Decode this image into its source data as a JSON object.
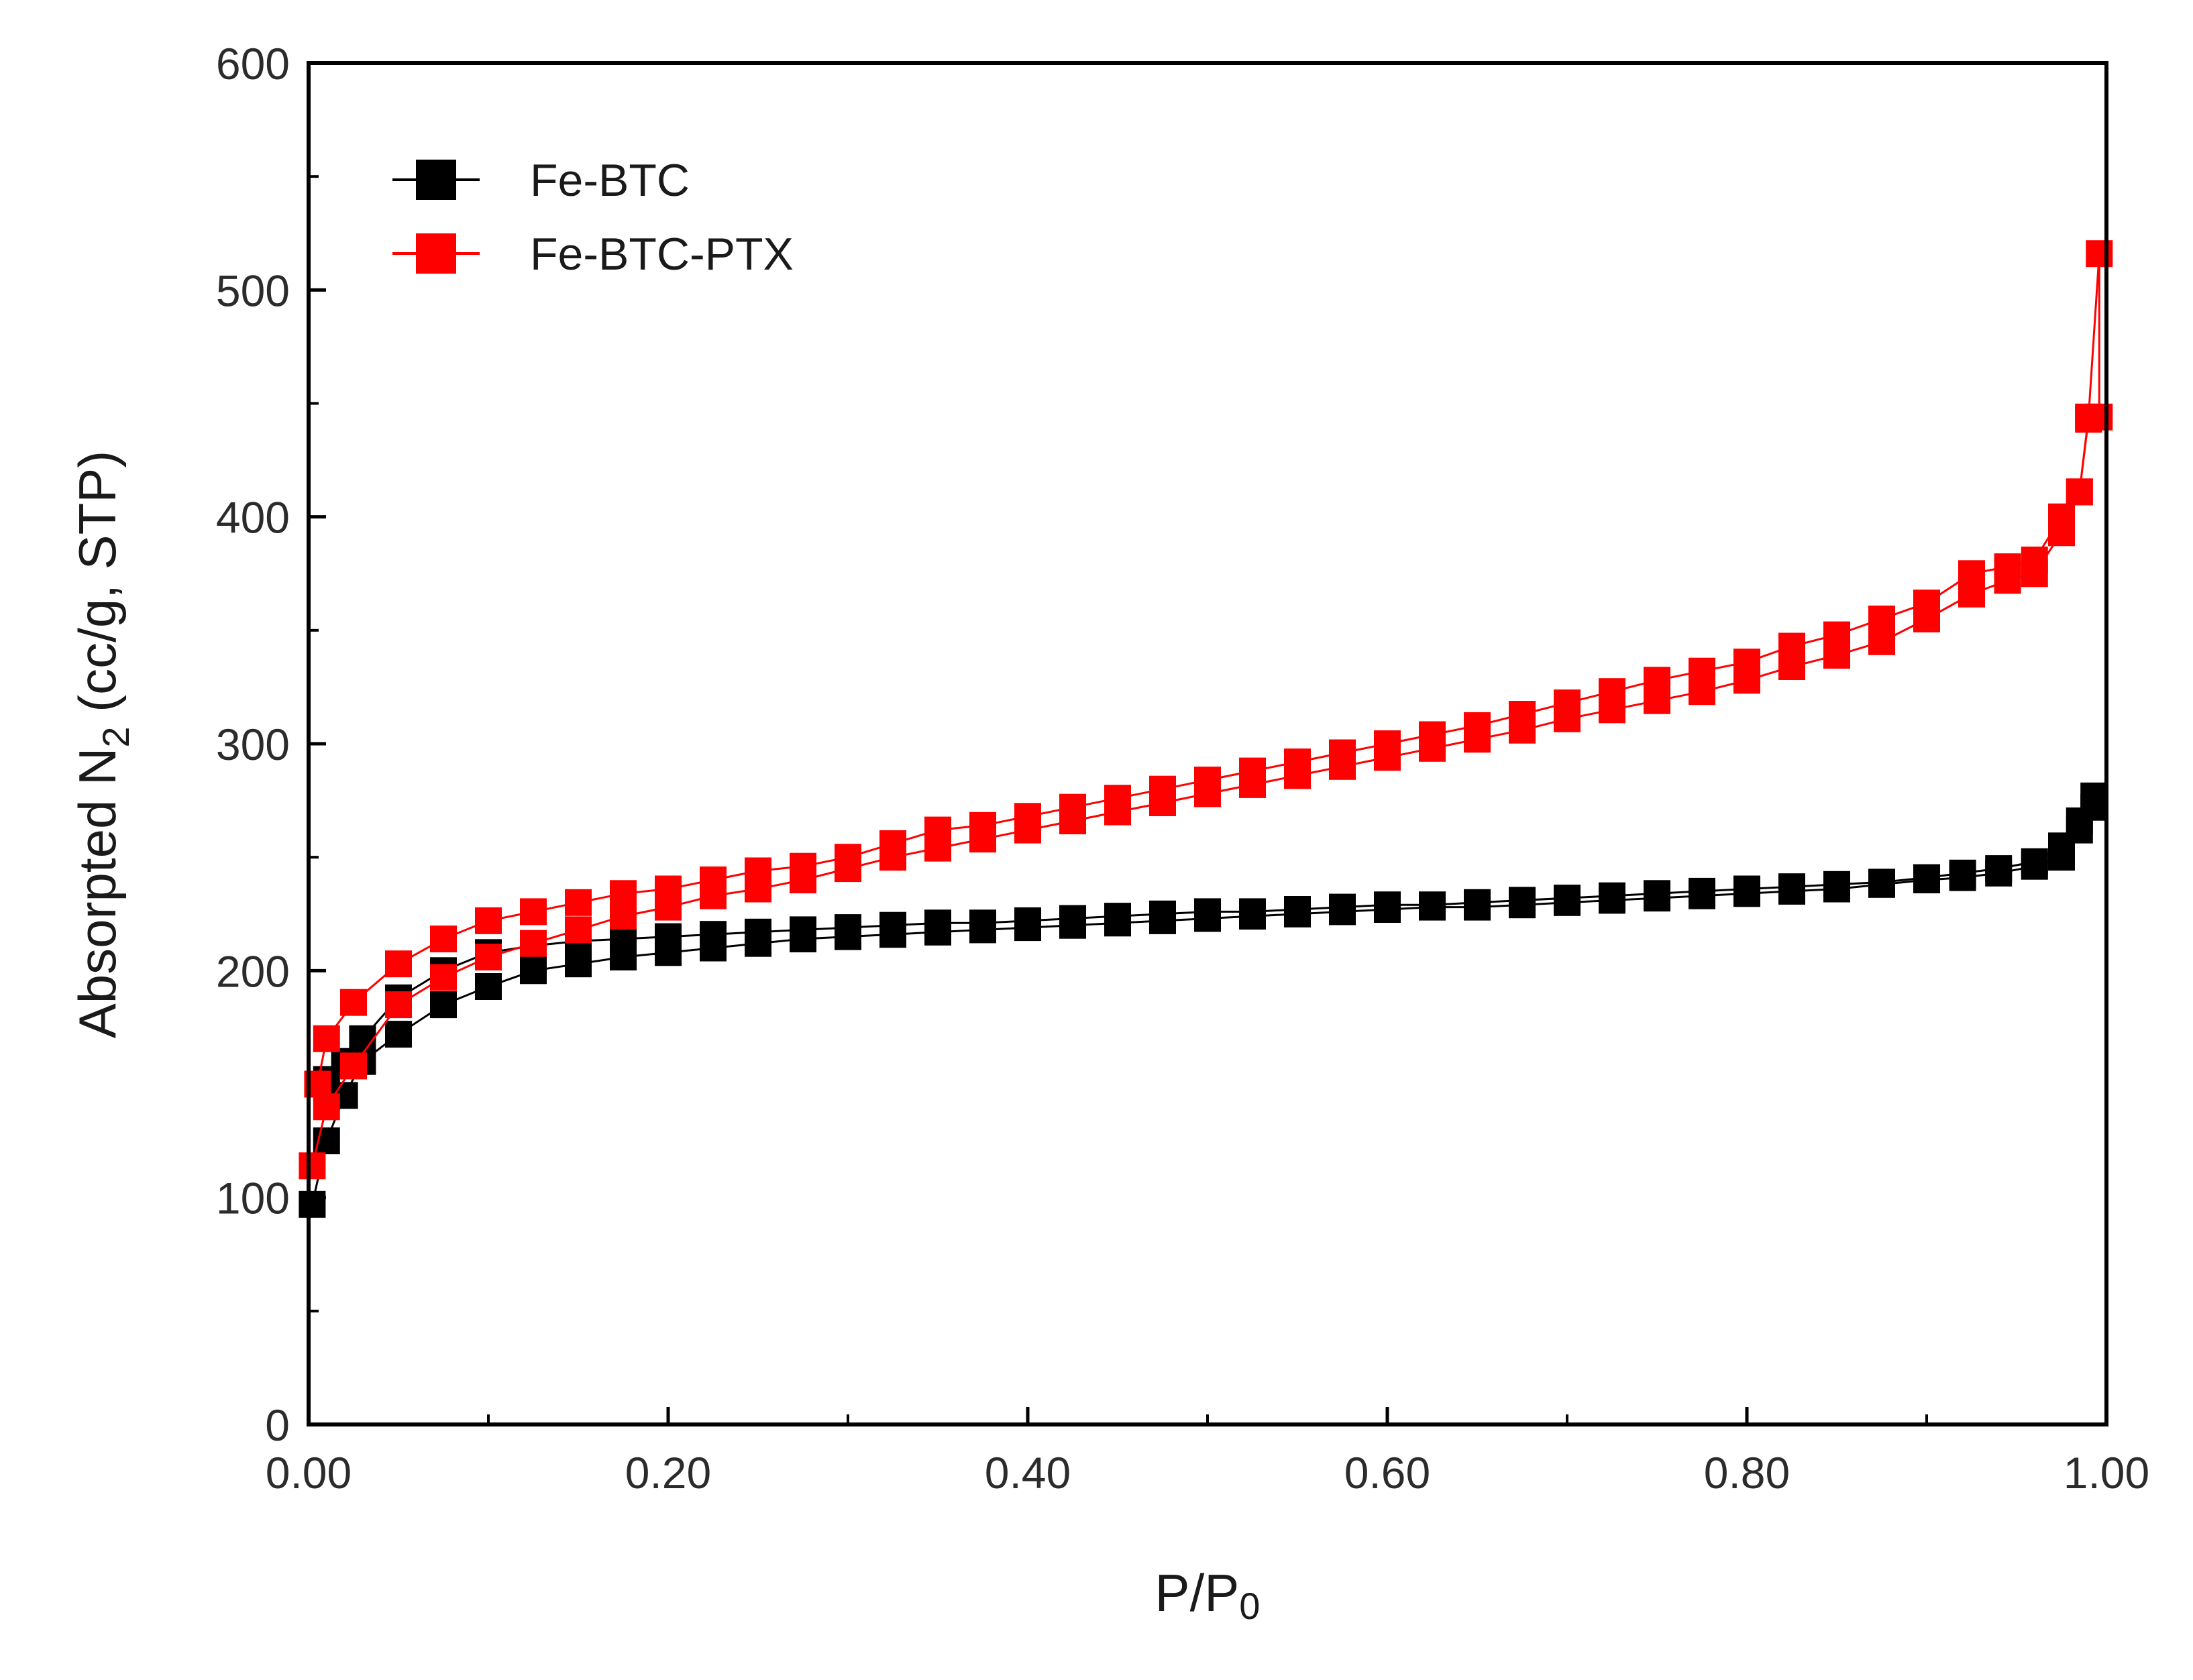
{
  "chart_data": {
    "type": "scatter",
    "title": "",
    "xlabel": "P/P",
    "xlabel_sub": "0",
    "ylabel": "Absorpted N",
    "ylabel_sub": "2",
    "ylabel_suffix": " (cc/g, STP)",
    "xlim": [
      0,
      1
    ],
    "ylim": [
      0,
      600
    ],
    "x_ticks": [
      0,
      0.2,
      0.4,
      0.6,
      0.8,
      1.0
    ],
    "x_tick_labels": [
      "0.00",
      "0.20",
      "0.40",
      "0.60",
      "0.80",
      "1.00"
    ],
    "y_ticks": [
      0,
      100,
      200,
      300,
      400,
      500,
      600
    ],
    "y_tick_labels": [
      "0",
      "100",
      "200",
      "300",
      "400",
      "500",
      "600"
    ],
    "grid": false,
    "legend_position": "top-left",
    "series": [
      {
        "name": "Fe-BTC",
        "color": "#000000",
        "adsorption": [
          [
            0.002,
            97
          ],
          [
            0.01,
            125
          ],
          [
            0.02,
            145
          ],
          [
            0.03,
            160
          ],
          [
            0.05,
            172
          ],
          [
            0.075,
            185
          ],
          [
            0.1,
            193
          ],
          [
            0.125,
            200
          ],
          [
            0.15,
            203
          ],
          [
            0.175,
            206
          ],
          [
            0.2,
            208
          ],
          [
            0.225,
            210
          ],
          [
            0.25,
            212
          ],
          [
            0.275,
            214
          ],
          [
            0.3,
            215
          ],
          [
            0.325,
            216
          ],
          [
            0.35,
            217
          ],
          [
            0.375,
            218
          ],
          [
            0.4,
            219
          ],
          [
            0.425,
            220
          ],
          [
            0.45,
            221
          ],
          [
            0.475,
            222
          ],
          [
            0.5,
            223
          ],
          [
            0.525,
            224
          ],
          [
            0.55,
            225
          ],
          [
            0.575,
            226
          ],
          [
            0.6,
            227
          ],
          [
            0.625,
            228
          ],
          [
            0.65,
            228
          ],
          [
            0.675,
            229
          ],
          [
            0.7,
            230
          ],
          [
            0.725,
            231
          ],
          [
            0.75,
            232
          ],
          [
            0.775,
            233
          ],
          [
            0.8,
            234
          ],
          [
            0.825,
            235
          ],
          [
            0.85,
            236
          ],
          [
            0.875,
            238
          ],
          [
            0.9,
            240
          ],
          [
            0.92,
            241
          ],
          [
            0.94,
            243
          ],
          [
            0.96,
            246
          ],
          [
            0.975,
            250
          ],
          [
            0.985,
            262
          ],
          [
            0.993,
            277
          ]
        ],
        "desorption": [
          [
            0.993,
            272
          ],
          [
            0.985,
            266
          ],
          [
            0.975,
            255
          ],
          [
            0.96,
            248
          ],
          [
            0.94,
            245
          ],
          [
            0.92,
            243
          ],
          [
            0.9,
            241
          ],
          [
            0.875,
            239
          ],
          [
            0.85,
            238
          ],
          [
            0.825,
            237
          ],
          [
            0.8,
            236
          ],
          [
            0.775,
            235
          ],
          [
            0.75,
            234
          ],
          [
            0.725,
            233
          ],
          [
            0.7,
            232
          ],
          [
            0.675,
            231
          ],
          [
            0.65,
            230
          ],
          [
            0.625,
            229
          ],
          [
            0.6,
            229
          ],
          [
            0.575,
            228
          ],
          [
            0.55,
            227
          ],
          [
            0.525,
            226
          ],
          [
            0.5,
            226
          ],
          [
            0.475,
            225
          ],
          [
            0.45,
            224
          ],
          [
            0.425,
            223
          ],
          [
            0.4,
            222
          ],
          [
            0.375,
            221
          ],
          [
            0.35,
            221
          ],
          [
            0.325,
            220
          ],
          [
            0.3,
            219
          ],
          [
            0.275,
            218
          ],
          [
            0.25,
            217
          ],
          [
            0.225,
            216
          ],
          [
            0.2,
            215
          ],
          [
            0.175,
            214
          ],
          [
            0.15,
            213
          ],
          [
            0.125,
            211
          ],
          [
            0.1,
            208
          ],
          [
            0.075,
            200
          ],
          [
            0.05,
            188
          ],
          [
            0.03,
            170
          ],
          [
            0.02,
            160
          ],
          [
            0.01,
            152
          ]
        ]
      },
      {
        "name": "Fe-BTC-PTX",
        "color": "#ff0000",
        "adsorption": [
          [
            0.002,
            114
          ],
          [
            0.01,
            140
          ],
          [
            0.025,
            158
          ],
          [
            0.05,
            185
          ],
          [
            0.075,
            197
          ],
          [
            0.1,
            206
          ],
          [
            0.125,
            212
          ],
          [
            0.15,
            218
          ],
          [
            0.175,
            224
          ],
          [
            0.2,
            228
          ],
          [
            0.225,
            233
          ],
          [
            0.25,
            236
          ],
          [
            0.275,
            240
          ],
          [
            0.3,
            245
          ],
          [
            0.325,
            250
          ],
          [
            0.35,
            254
          ],
          [
            0.375,
            258
          ],
          [
            0.4,
            262
          ],
          [
            0.425,
            266
          ],
          [
            0.45,
            270
          ],
          [
            0.475,
            274
          ],
          [
            0.5,
            278
          ],
          [
            0.525,
            282
          ],
          [
            0.55,
            286
          ],
          [
            0.575,
            290
          ],
          [
            0.6,
            294
          ],
          [
            0.625,
            298
          ],
          [
            0.65,
            302
          ],
          [
            0.675,
            306
          ],
          [
            0.7,
            311
          ],
          [
            0.725,
            315
          ],
          [
            0.75,
            319
          ],
          [
            0.775,
            323
          ],
          [
            0.8,
            328
          ],
          [
            0.825,
            334
          ],
          [
            0.85,
            339
          ],
          [
            0.875,
            345
          ],
          [
            0.9,
            355
          ],
          [
            0.925,
            366
          ],
          [
            0.945,
            372
          ],
          [
            0.96,
            375
          ],
          [
            0.975,
            393
          ],
          [
            0.985,
            411
          ],
          [
            0.99,
            444
          ],
          [
            0.996,
            516
          ]
        ],
        "desorption": [
          [
            0.996,
            444
          ],
          [
            0.99,
            443
          ],
          [
            0.985,
            411
          ],
          [
            0.975,
            400
          ],
          [
            0.96,
            381
          ],
          [
            0.945,
            378
          ],
          [
            0.925,
            375
          ],
          [
            0.9,
            362
          ],
          [
            0.875,
            355
          ],
          [
            0.85,
            348
          ],
          [
            0.825,
            343
          ],
          [
            0.8,
            336
          ],
          [
            0.775,
            332
          ],
          [
            0.75,
            328
          ],
          [
            0.725,
            323
          ],
          [
            0.7,
            318
          ],
          [
            0.675,
            313
          ],
          [
            0.65,
            308
          ],
          [
            0.625,
            304
          ],
          [
            0.6,
            300
          ],
          [
            0.575,
            296
          ],
          [
            0.55,
            292
          ],
          [
            0.525,
            288
          ],
          [
            0.5,
            284
          ],
          [
            0.475,
            280
          ],
          [
            0.45,
            276
          ],
          [
            0.425,
            272
          ],
          [
            0.4,
            268
          ],
          [
            0.375,
            264
          ],
          [
            0.35,
            262
          ],
          [
            0.325,
            256
          ],
          [
            0.3,
            250
          ],
          [
            0.275,
            246
          ],
          [
            0.25,
            244
          ],
          [
            0.225,
            240
          ],
          [
            0.2,
            236
          ],
          [
            0.175,
            234
          ],
          [
            0.15,
            230
          ],
          [
            0.125,
            226
          ],
          [
            0.1,
            222
          ],
          [
            0.075,
            214
          ],
          [
            0.05,
            203
          ],
          [
            0.025,
            186
          ],
          [
            0.01,
            170
          ],
          [
            0.005,
            150
          ]
        ]
      }
    ]
  }
}
